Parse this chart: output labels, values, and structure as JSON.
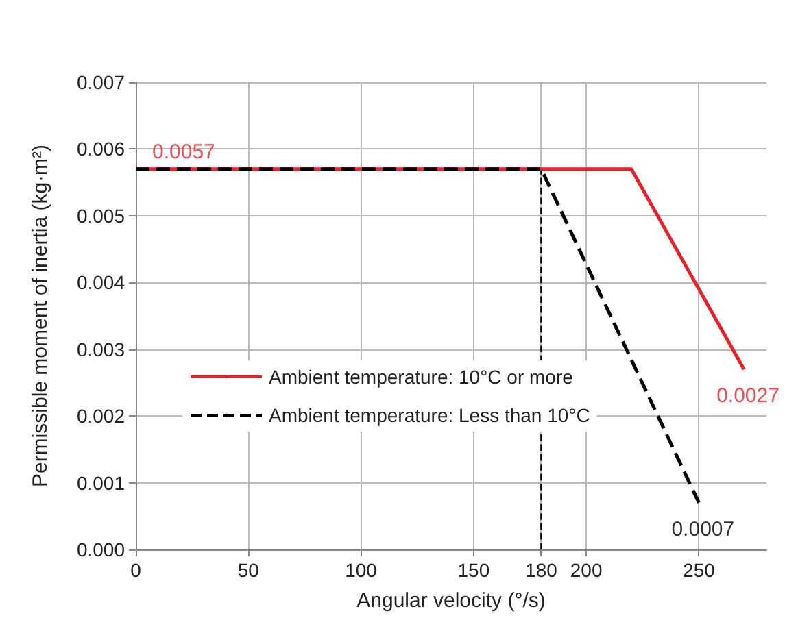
{
  "chart_data": {
    "type": "line",
    "xlabel": "Angular velocity (°/s)",
    "ylabel": "Permissible moment of inertia (kg·m²)",
    "series": [
      {
        "name": "Ambient temperature: 10°C or more",
        "color": "#e8202a",
        "line_style": "solid",
        "x": [
          0,
          220,
          270
        ],
        "values": [
          0.0057,
          0.0057,
          0.0027
        ]
      },
      {
        "name": "Ambient temperature: Less than 10°C",
        "color": "#000000",
        "line_style": "dashed",
        "x": [
          0,
          180,
          250
        ],
        "values": [
          0.0057,
          0.0057,
          0.0007
        ]
      }
    ],
    "xlim": [
      0,
      280
    ],
    "xticks": [
      0,
      50,
      100,
      150,
      200,
      250
    ],
    "ylim": [
      0,
      0.007
    ],
    "yticks": [
      {
        "value": 0,
        "label": "0.000"
      },
      {
        "value": 0.001,
        "label": "0.001"
      },
      {
        "value": 0.002,
        "label": "0.002"
      },
      {
        "value": 0.003,
        "label": "0.003"
      },
      {
        "value": 0.004,
        "label": "0.004"
      },
      {
        "value": 0.005,
        "label": "0.005"
      },
      {
        "value": 0.006,
        "label": "0.006"
      },
      {
        "value": 0.007,
        "label": "0.007"
      }
    ],
    "ref_lines": [
      {
        "axis": "x",
        "value": 180,
        "label": "180",
        "color": "#000000",
        "line_style": "dashed"
      }
    ],
    "annotations": [
      {
        "text": "0.0057",
        "x": 0,
        "y": 0.0057
      },
      {
        "text": "0.0027",
        "x": 270,
        "y": 0.0027
      },
      {
        "text": "0.0007",
        "x": 250,
        "y": 0.0007
      }
    ],
    "grid": true,
    "legend": "left",
    "marker": "none"
  }
}
